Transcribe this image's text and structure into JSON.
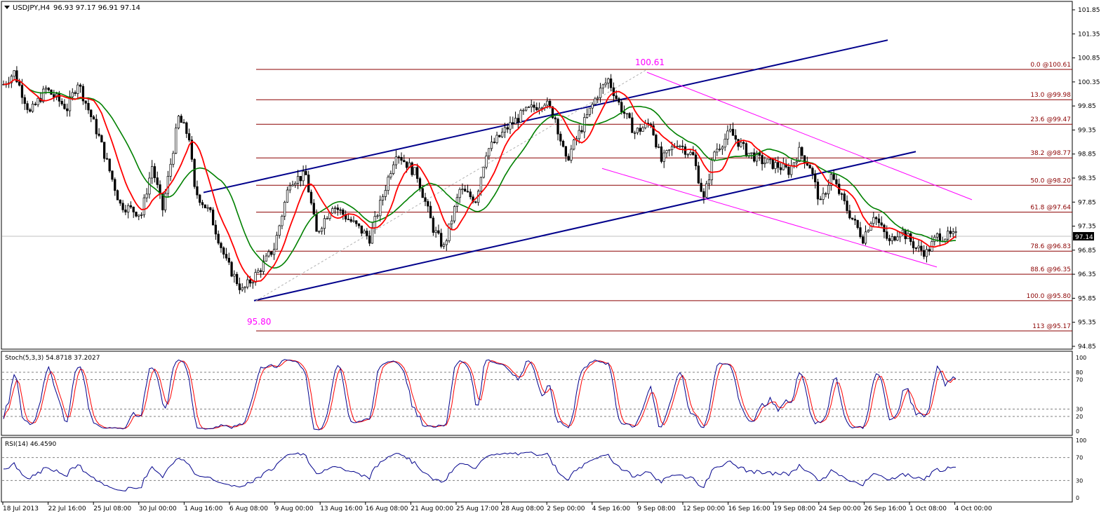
{
  "header": {
    "symbol": "USDJPY,H4",
    "ohlc": "96.93 97.17 96.91 97.14",
    "last_price": "97.14"
  },
  "chart_data": {
    "type": "candlestick",
    "main_panel": {
      "price_axis_ticks": [
        "101.85",
        "101.35",
        "100.85",
        "100.35",
        "99.85",
        "99.35",
        "98.85",
        "98.35",
        "97.85",
        "97.35",
        "96.85",
        "96.35",
        "95.85",
        "95.35",
        "94.85"
      ],
      "ylim": [
        94.85,
        101.85
      ],
      "swing_high": {
        "label": "100.61",
        "value": 100.61,
        "time": "9 Sep 2013"
      },
      "swing_low": {
        "label": "95.80",
        "value": 95.8,
        "time": "8 Aug 2013"
      },
      "fibonacci_levels": [
        {
          "label": "0.0 @100.61",
          "value": 100.61
        },
        {
          "label": "13.0 @99.98",
          "value": 99.98
        },
        {
          "label": "23.6 @99.47",
          "value": 99.47
        },
        {
          "label": "38.2 @98.77",
          "value": 98.77
        },
        {
          "label": "50.0 @98.20",
          "value": 98.2
        },
        {
          "label": "61.8 @97.64",
          "value": 97.64
        },
        {
          "label": "78.6 @96.83",
          "value": 96.83
        },
        {
          "label": "88.6 @96.35",
          "value": 96.35
        },
        {
          "label": "100.0 @95.80",
          "value": 95.8
        },
        {
          "label": "113 @95.17",
          "value": 95.17
        }
      ],
      "close_path": [
        [
          0,
          100.3
        ],
        [
          4,
          100.55
        ],
        [
          10,
          99.7
        ],
        [
          16,
          100.2
        ],
        [
          24,
          99.8
        ],
        [
          28,
          100.35
        ],
        [
          36,
          99.2
        ],
        [
          44,
          97.8
        ],
        [
          52,
          97.6
        ],
        [
          56,
          98.6
        ],
        [
          60,
          97.7
        ],
        [
          66,
          99.6
        ],
        [
          70,
          99.2
        ],
        [
          72,
          98.1
        ],
        [
          78,
          97.6
        ],
        [
          84,
          96.6
        ],
        [
          90,
          96.0
        ],
        [
          96,
          96.4
        ],
        [
          102,
          96.9
        ],
        [
          108,
          98.3
        ],
        [
          114,
          98.4
        ],
        [
          118,
          97.2
        ],
        [
          124,
          97.8
        ],
        [
          130,
          97.5
        ],
        [
          138,
          97.1
        ],
        [
          142,
          97.8
        ],
        [
          148,
          98.9
        ],
        [
          156,
          98.4
        ],
        [
          162,
          97.3
        ],
        [
          166,
          96.9
        ],
        [
          172,
          98.1
        ],
        [
          178,
          97.9
        ],
        [
          182,
          98.9
        ],
        [
          190,
          99.4
        ],
        [
          196,
          99.7
        ],
        [
          204,
          99.95
        ],
        [
          208,
          99.6
        ],
        [
          212,
          98.7
        ],
        [
          218,
          99.4
        ],
        [
          224,
          100.1
        ],
        [
          228,
          100.4
        ],
        [
          232,
          99.9
        ],
        [
          238,
          99.3
        ],
        [
          244,
          99.5
        ],
        [
          248,
          98.7
        ],
        [
          254,
          99.1
        ],
        [
          260,
          98.8
        ],
        [
          264,
          97.9
        ],
        [
          268,
          98.9
        ],
        [
          274,
          99.3
        ],
        [
          280,
          98.9
        ],
        [
          286,
          98.7
        ],
        [
          292,
          98.6
        ],
        [
          296,
          98.5
        ],
        [
          300,
          98.9
        ],
        [
          304,
          98.6
        ],
        [
          308,
          97.8
        ],
        [
          312,
          98.4
        ],
        [
          318,
          97.7
        ],
        [
          324,
          97.1
        ],
        [
          328,
          97.6
        ],
        [
          334,
          97.0
        ],
        [
          338,
          97.3
        ],
        [
          344,
          96.9
        ],
        [
          348,
          96.8
        ],
        [
          352,
          97.14
        ]
      ],
      "indicators": [
        "EMA red (fast)",
        "EMA green (slow)"
      ],
      "channels": [
        "ascending channel (blue)",
        "descending channel (magenta)"
      ]
    },
    "stochastic": {
      "label": "Stoch(5,3,3) 54.8718 37.2027",
      "main": 54.8718,
      "signal": 37.2027,
      "axis_ticks": [
        "100",
        "80",
        "70",
        "30",
        "20",
        "0"
      ],
      "levels": [
        80,
        70,
        30,
        20
      ],
      "ylim": [
        0,
        100
      ]
    },
    "rsi": {
      "label": "RSI(14) 46.4590",
      "value": 46.459,
      "axis_ticks": [
        "100",
        "70",
        "30",
        "0"
      ],
      "levels": [
        70,
        30
      ],
      "ylim": [
        0,
        100
      ]
    },
    "x_ticks": [
      "18 Jul 2013",
      "22 Jul 16:00",
      "25 Jul 08:00",
      "30 Jul 00:00",
      "1 Aug 16:00",
      "6 Aug 08:00",
      "9 Aug 00:00",
      "13 Aug 16:00",
      "16 Aug 08:00",
      "21 Aug 00:00",
      "25 Aug 17:00",
      "28 Aug 08:00",
      "2 Sep 00:00",
      "4 Sep 16:00",
      "9 Sep 08:00",
      "12 Sep 00:00",
      "16 Sep 16:00",
      "19 Sep 08:00",
      "24 Sep 00:00",
      "26 Sep 16:00",
      "1 Oct 08:00",
      "4 Oct 00:00"
    ],
    "colors": {
      "bull_candle": "#ffffff",
      "bear_candle": "#000000",
      "fast_ma": "#ff0000",
      "slow_ma": "#008000",
      "channel_up": "#00008b",
      "channel_down": "#ff00ff",
      "fib_line": "#8b0000",
      "stoch_main": "#00008b",
      "stoch_signal": "#ff0000",
      "rsi_line": "#00008b",
      "annotation": "#ff00ff"
    }
  }
}
